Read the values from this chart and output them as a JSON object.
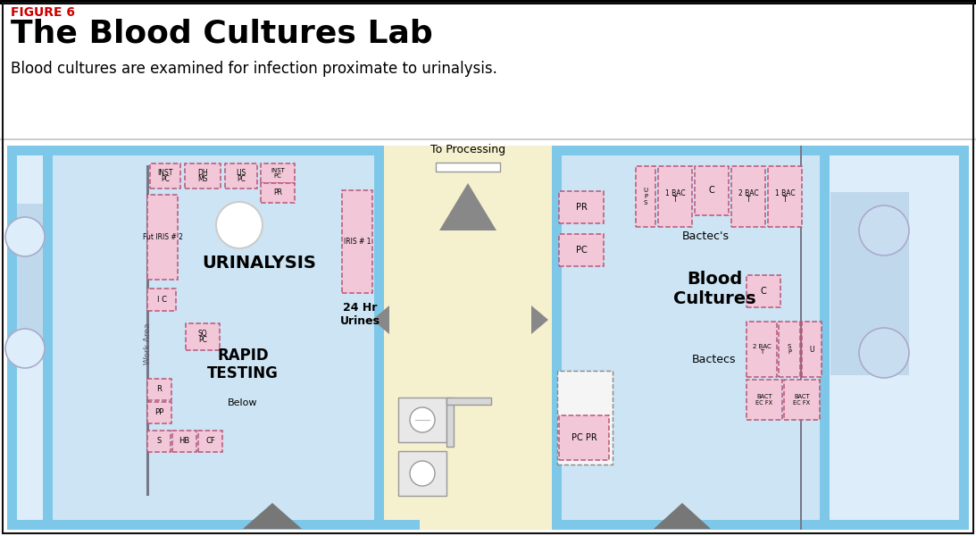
{
  "title_label": "FIGURE 6",
  "title_main": "The Blood Cultures Lab",
  "subtitle": "Blood cultures are examined for infection proximate to urinalysis.",
  "bg_color": "#ffffff",
  "floor_bg": "#cce4f4",
  "alcove_bg": "#ddeefa",
  "corridor_bg": "#f5f0ce",
  "wall_color": "#7dc8e8",
  "equipment_fill": "#f2c8d8",
  "equipment_border": "#bb5577",
  "divider_color": "#888899",
  "sink_fill": "#e8e8e8",
  "triangle_color": "#888888",
  "label_color": "#222222"
}
